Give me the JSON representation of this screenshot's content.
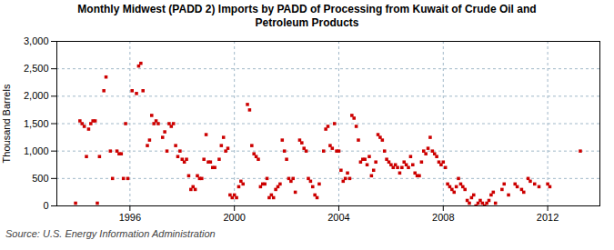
{
  "chart_data": {
    "type": "scatter",
    "title": "Monthly Midwest (PADD 2) Imports by PADD of Processing from Kuwait of Crude Oil and\nPetroleum Products",
    "ylabel": "Thousand Barrels",
    "source": "Source: U.S. Energy Information Administration",
    "color": "#cc0000",
    "marker": "square",
    "grid": true,
    "xlim": [
      1993.2,
      2014.0
    ],
    "xticks": [
      1996,
      2000,
      2004,
      2008,
      2012
    ],
    "ylim": [
      0,
      3000
    ],
    "yticks": [
      0,
      500,
      {
        "value": 1000,
        "label": "1,000"
      },
      {
        "value": 1500,
        "label": "1,500"
      },
      {
        "value": 2000,
        "label": "2,000"
      },
      {
        "value": 2500,
        "label": "2,500"
      },
      {
        "value": 3000,
        "label": "3,000"
      }
    ],
    "x": [
      1993.917,
      1994.083,
      1994.167,
      1994.25,
      1994.333,
      1994.417,
      1994.5,
      1994.583,
      1994.667,
      1994.75,
      1994.833,
      1995.0,
      1995.083,
      1995.25,
      1995.333,
      1995.5,
      1995.583,
      1995.667,
      1995.75,
      1995.833,
      1995.917,
      1996.083,
      1996.25,
      1996.333,
      1996.417,
      1996.5,
      1996.667,
      1996.75,
      1996.833,
      1996.917,
      1997.0,
      1997.083,
      1997.25,
      1997.333,
      1997.417,
      1997.5,
      1997.583,
      1997.667,
      1997.75,
      1997.833,
      1997.917,
      1998.0,
      1998.083,
      1998.167,
      1998.25,
      1998.333,
      1998.417,
      1998.5,
      1998.583,
      1998.667,
      1998.75,
      1998.833,
      1998.917,
      1999.0,
      1999.083,
      1999.167,
      1999.25,
      1999.417,
      1999.5,
      1999.583,
      1999.667,
      1999.75,
      1999.833,
      1999.917,
      2000.0,
      2000.083,
      2000.167,
      2000.25,
      2000.333,
      2000.5,
      2000.583,
      2000.667,
      2000.75,
      2000.833,
      2000.917,
      2001.0,
      2001.083,
      2001.167,
      2001.25,
      2001.333,
      2001.417,
      2001.5,
      2001.583,
      2001.667,
      2001.75,
      2001.833,
      2001.917,
      2002.0,
      2002.083,
      2002.167,
      2002.25,
      2002.333,
      2002.5,
      2002.583,
      2002.667,
      2002.75,
      2002.833,
      2002.917,
      2003.0,
      2003.083,
      2003.167,
      2003.25,
      2003.417,
      2003.5,
      2003.583,
      2003.667,
      2003.75,
      2003.833,
      2003.917,
      2004.0,
      2004.083,
      2004.167,
      2004.25,
      2004.333,
      2004.417,
      2004.5,
      2004.583,
      2004.667,
      2004.75,
      2004.833,
      2004.917,
      2005.0,
      2005.083,
      2005.167,
      2005.25,
      2005.333,
      2005.417,
      2005.5,
      2005.583,
      2005.667,
      2005.75,
      2005.833,
      2005.917,
      2006.0,
      2006.083,
      2006.167,
      2006.25,
      2006.333,
      2006.417,
      2006.5,
      2006.583,
      2006.667,
      2006.75,
      2006.833,
      2006.917,
      2007.0,
      2007.083,
      2007.167,
      2007.25,
      2007.333,
      2007.417,
      2007.5,
      2007.583,
      2007.667,
      2007.75,
      2007.833,
      2007.917,
      2008.0,
      2008.083,
      2008.167,
      2008.25,
      2008.333,
      2008.417,
      2008.5,
      2008.583,
      2008.667,
      2008.75,
      2008.833,
      2008.917,
      2009.0,
      2009.083,
      2009.167,
      2009.25,
      2009.333,
      2009.417,
      2009.5,
      2009.583,
      2009.667,
      2009.75,
      2009.833,
      2009.917,
      2010.0,
      2010.25,
      2010.333,
      2010.5,
      2010.75,
      2010.833,
      2011.0,
      2011.083,
      2011.25,
      2011.333,
      2011.5,
      2011.667,
      2012.0,
      2012.083,
      2013.25
    ],
    "values": [
      50,
      1550,
      1500,
      1450,
      900,
      1400,
      1500,
      1550,
      1550,
      50,
      900,
      2100,
      2350,
      1000,
      500,
      1000,
      950,
      950,
      500,
      1500,
      500,
      2100,
      2050,
      2550,
      2600,
      2100,
      1100,
      1200,
      1650,
      1500,
      1550,
      1500,
      1250,
      1350,
      1000,
      1500,
      1450,
      1500,
      1100,
      900,
      1000,
      850,
      800,
      850,
      550,
      300,
      350,
      300,
      550,
      500,
      500,
      850,
      1300,
      800,
      800,
      700,
      700,
      850,
      1100,
      1250,
      1000,
      1050,
      200,
      150,
      200,
      150,
      350,
      450,
      400,
      1850,
      1750,
      1100,
      950,
      900,
      850,
      350,
      400,
      400,
      500,
      150,
      200,
      150,
      300,
      350,
      400,
      1200,
      1000,
      850,
      500,
      450,
      500,
      250,
      1200,
      1150,
      1050,
      1000,
      500,
      450,
      350,
      200,
      150,
      400,
      1000,
      1400,
      1450,
      1100,
      1050,
      1500,
      1000,
      1000,
      650,
      450,
      500,
      600,
      500,
      1650,
      1600,
      1450,
      1200,
      800,
      850,
      850,
      750,
      900,
      550,
      650,
      800,
      1300,
      1250,
      1200,
      1000,
      850,
      800,
      750,
      700,
      750,
      700,
      600,
      700,
      800,
      750,
      700,
      900,
      750,
      600,
      550,
      550,
      800,
      1000,
      950,
      1050,
      1250,
      1000,
      950,
      900,
      800,
      750,
      800,
      700,
      400,
      350,
      300,
      250,
      350,
      500,
      400,
      350,
      300,
      100,
      50,
      150,
      200,
      0,
      50,
      100,
      50,
      0,
      50,
      100,
      200,
      250,
      50,
      300,
      400,
      200,
      400,
      350,
      300,
      250,
      500,
      450,
      400,
      350,
      400,
      350,
      1000
    ]
  }
}
